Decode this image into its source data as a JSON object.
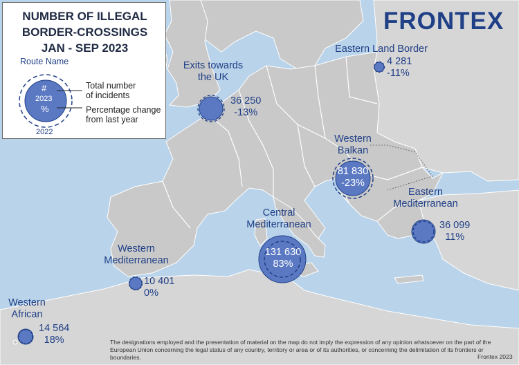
{
  "legend": {
    "title_lines": [
      "NUMBER OF ILLEGAL",
      "BORDER-CROSSINGS",
      "JAN - SEP 2023"
    ],
    "route_name": "Route Name",
    "symbol": "#",
    "year_current": "2023",
    "percent_symbol": "%",
    "year_previous": "2022",
    "total_label_lines": [
      "Total number",
      "of incidents"
    ],
    "change_label_lines": [
      "Percentage change",
      "from last year"
    ]
  },
  "logo": "FRONTEX",
  "routes": [
    {
      "id": "eastern-land-border",
      "name_lines": [
        "Eastern Land Border"
      ],
      "total": "4 281",
      "change": "-11%",
      "total_2023": 4281,
      "change_pct": -11
    },
    {
      "id": "exits-towards-the-uk",
      "name_lines": [
        "Exits towards",
        "the UK"
      ],
      "total": "36 250",
      "change": "-13%",
      "total_2023": 36250,
      "change_pct": -13
    },
    {
      "id": "western-balkan",
      "name_lines": [
        "Western",
        "Balkan"
      ],
      "total": "81 830",
      "change": "-23%",
      "total_2023": 81830,
      "change_pct": -23
    },
    {
      "id": "eastern-mediterranean",
      "name_lines": [
        "Eastern",
        "Mediterranean"
      ],
      "total": "36 099",
      "change": "11%",
      "total_2023": 36099,
      "change_pct": 11
    },
    {
      "id": "central-mediterranean",
      "name_lines": [
        "Central",
        "Mediterranean"
      ],
      "total": "131 630",
      "change": "83%",
      "total_2023": 131630,
      "change_pct": 83
    },
    {
      "id": "western-mediterranean",
      "name_lines": [
        "Western",
        "Mediterranean"
      ],
      "total": "10 401",
      "change": "0%",
      "total_2023": 10401,
      "change_pct": 0
    },
    {
      "id": "western-african",
      "name_lines": [
        "Western",
        "African"
      ],
      "total": "14 564",
      "change": "18%",
      "total_2023": 14564,
      "change_pct": 18
    }
  ],
  "disclaimer": "The designations employed and the presentation of material on the map do not imply the expression of any opinion whatsoever on the part of the European Union concerning the legal status of any country, territory or area or of its authorities, or concerning the delimitation of its frontiers or boundaries.",
  "copyright": "Frontex 2023",
  "colors": {
    "sea": "#b9d3ea",
    "land_eu": "#c9c9c9",
    "land_other": "#d8d8d8",
    "bubble_fill": "#5b79c3",
    "bubble_stroke": "#1f3f86",
    "text": "#1f3f86"
  }
}
